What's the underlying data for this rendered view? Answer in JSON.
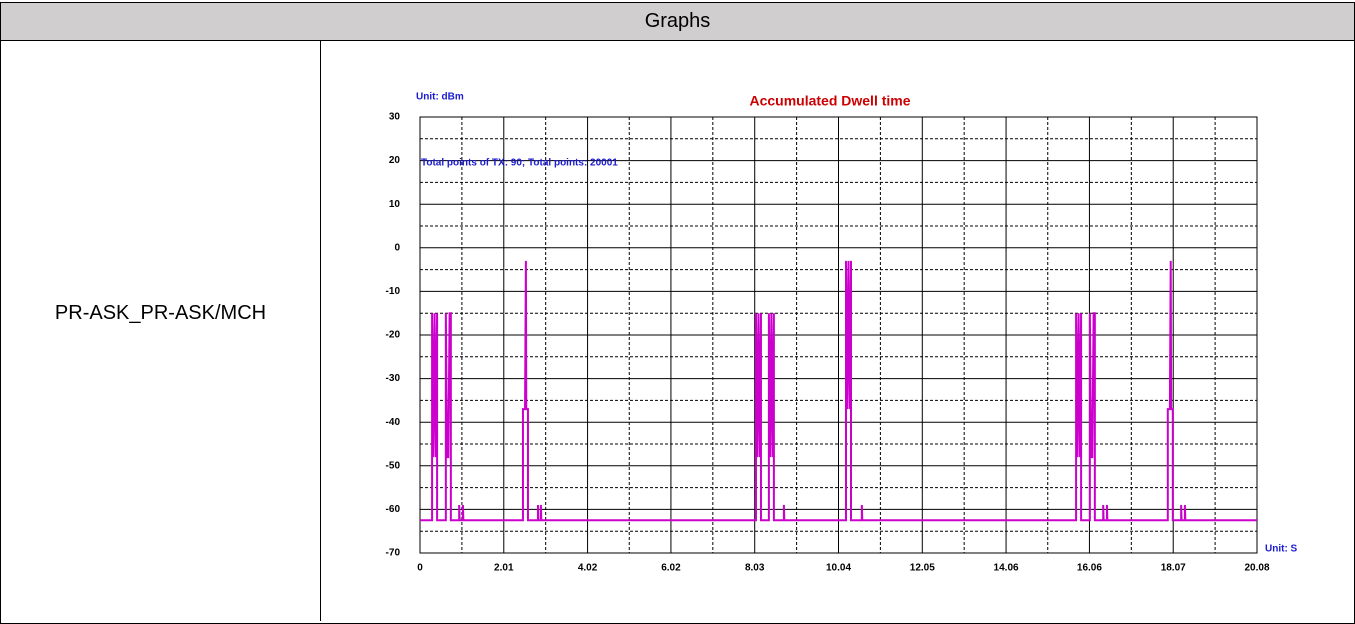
{
  "header": {
    "title": "Graphs"
  },
  "row": {
    "label": "PR-ASK_PR-ASK/MCH"
  },
  "chart_data": {
    "type": "line",
    "title": "Accumulated Dwell time",
    "y_unit": "Unit: dBm",
    "x_unit": "Unit: S",
    "annotation": "Total points of TX: 90; Total points: 20001",
    "color": "#cc00cc",
    "grid": true,
    "xlim": [
      0,
      20.08
    ],
    "xticks": [
      0,
      2.01,
      4.02,
      6.02,
      8.03,
      10.04,
      12.05,
      14.06,
      16.06,
      18.07,
      20.08
    ],
    "ylim": [
      -70,
      30
    ],
    "yticks": [
      30,
      20,
      10,
      0,
      -10,
      -20,
      -30,
      -40,
      -50,
      -60,
      -70
    ],
    "x": [
      0,
      0.29,
      0.29,
      0.32,
      0.35,
      0.38,
      0.41,
      0.41,
      0.62,
      0.62,
      0.65,
      0.68,
      0.71,
      0.74,
      0.74,
      0.94,
      0.94,
      0.95,
      1.03,
      1.03,
      1.04,
      2.47,
      2.47,
      2.52,
      2.54,
      2.55,
      2.59,
      2.59,
      2.83,
      2.83,
      2.84,
      2.9,
      2.9,
      2.91,
      8.06,
      8.06,
      8.09,
      8.12,
      8.15,
      8.18,
      8.18,
      8.37,
      8.37,
      8.4,
      8.43,
      8.46,
      8.49,
      8.49,
      8.73,
      8.73,
      8.74,
      10.22,
      10.22,
      10.25,
      10.28,
      10.31,
      10.34,
      10.34,
      10.6,
      10.6,
      10.61,
      15.74,
      15.74,
      15.77,
      15.8,
      15.83,
      15.86,
      15.86,
      16.07,
      16.07,
      16.1,
      16.13,
      16.16,
      16.19,
      16.19,
      16.39,
      16.39,
      16.4,
      16.48,
      16.48,
      16.49,
      17.94,
      17.94,
      17.99,
      18.01,
      18.02,
      18.06,
      18.06,
      18.26,
      18.26,
      18.27,
      18.35,
      18.35,
      18.36,
      20.08
    ],
    "values": [
      -62.5,
      -62.5,
      -15,
      -48,
      -15,
      -48,
      -15,
      -62.5,
      -62.5,
      -15,
      -48,
      -48,
      -15,
      -15,
      -62.5,
      -62.5,
      -59,
      -62.5,
      -62.5,
      -59,
      -62.5,
      -62.5,
      -37,
      -37,
      -3,
      -37,
      -37,
      -62.5,
      -62.5,
      -59,
      -62.5,
      -62.5,
      -59,
      -62.5,
      -62.5,
      -15,
      -48,
      -15,
      -48,
      -15,
      -62.5,
      -62.5,
      -15,
      -48,
      -15,
      -48,
      -15,
      -62.5,
      -62.5,
      -59,
      -62.5,
      -62.5,
      -3,
      -37,
      -3,
      -37,
      -3,
      -62.5,
      -62.5,
      -59,
      -62.5,
      -62.5,
      -15,
      -48,
      -15,
      -48,
      -15,
      -62.5,
      -62.5,
      -15,
      -48,
      -48,
      -15,
      -15,
      -62.5,
      -62.5,
      -59,
      -62.5,
      -62.5,
      -59,
      -62.5,
      -62.5,
      -37,
      -37,
      -3,
      -37,
      -37,
      -62.5,
      -62.5,
      -59,
      -62.5,
      -62.5,
      -59,
      -62.5,
      -62.5
    ]
  }
}
